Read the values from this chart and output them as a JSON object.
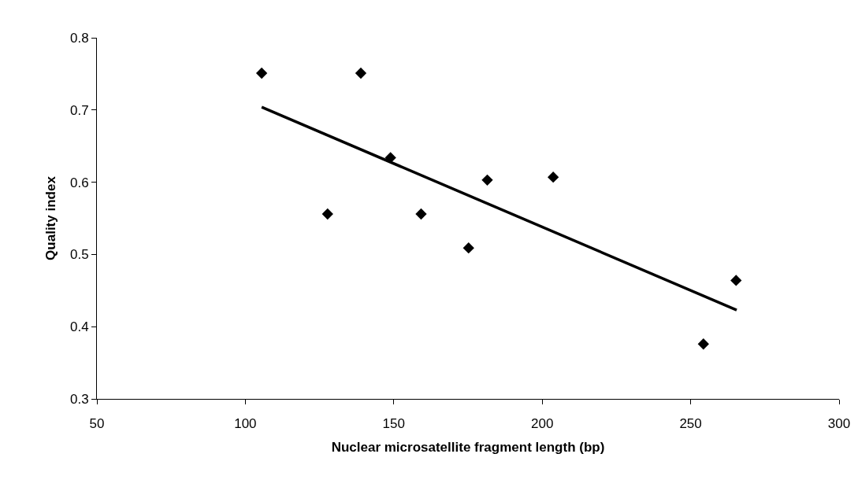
{
  "chart_data": {
    "type": "scatter",
    "xlabel": "Nuclear microsatellite fragment length (bp)",
    "ylabel": "Quality index",
    "xlim": [
      50,
      300
    ],
    "xticks": [
      50,
      100,
      150,
      200,
      250,
      300
    ],
    "ylim": [
      0.3,
      0.8
    ],
    "yticks": [
      0.3,
      0.4,
      0.5,
      0.6,
      0.7,
      0.8
    ],
    "grid": false,
    "line_style": "solid",
    "series": [
      {
        "marker": "diamond",
        "color": "#000000",
        "x": [
          105.5,
          127.7,
          138.9,
          148.9,
          159.2,
          175.2,
          181.5,
          203.7,
          254.3,
          265.3
        ],
        "values": [
          0.751,
          0.556,
          0.751,
          0.634,
          0.556,
          0.509,
          0.603,
          0.607,
          0.376,
          0.464
        ]
      },
      {
        "type": "line",
        "marker": "none",
        "color": "#000000",
        "x": [
          105.5,
          265.5
        ],
        "values": [
          0.704,
          0.423
        ]
      }
    ]
  }
}
